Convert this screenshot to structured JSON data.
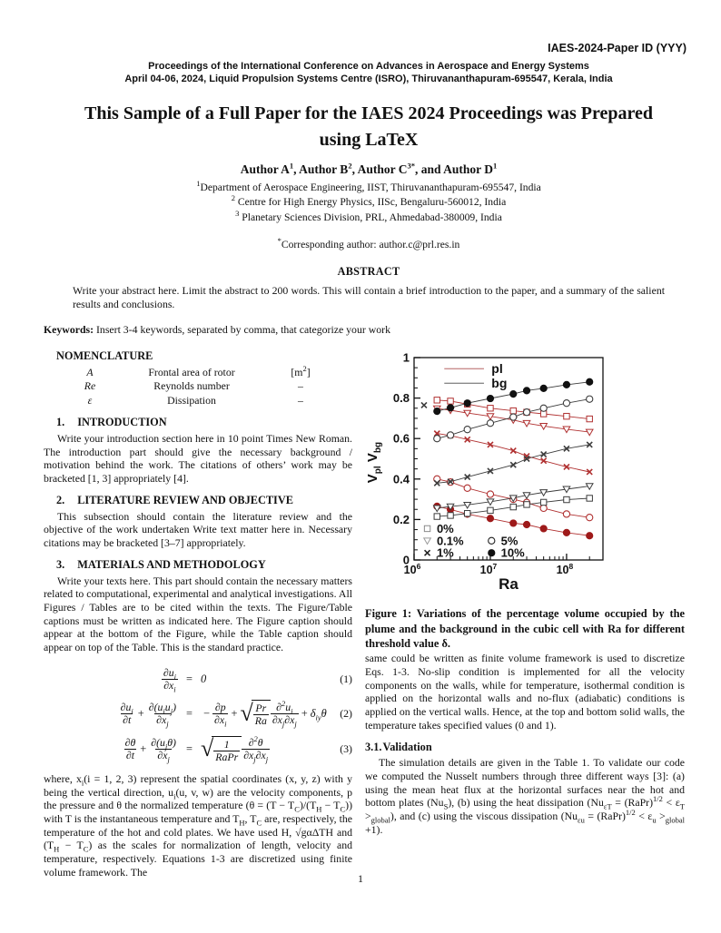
{
  "page": {
    "number": "1"
  },
  "header": {
    "paper_id": "IAES-2024-Paper ID (YYY)",
    "proc_line1": "Proceedings of the International Conference on Advances in Aerospace and Energy Systems",
    "proc_line2": "April 04-06, 2024, Liquid Propulsion Systems Centre (ISRO), Thiruvananthapuram-695547, Kerala, India"
  },
  "title": "This Sample of a Full Paper for the IAES 2024 Proceedings was Prepared using LaTeX",
  "authors": "Author A^{1}, Author B^{2}, Author C^{3*}, and Author D^{1}",
  "affiliations": [
    "^{1}Department of Aerospace Engineering, IIST, Thiruvananthapuram-695547, India",
    "^{2} Centre for High Energy Physics, IISc, Bengaluru-560012, India",
    "^{3} Planetary Sciences Division, PRL, Ahmedabad-380009, India"
  ],
  "corresponding": "^{*}Corresponding author: author.c@prl.res.in",
  "abstract": {
    "heading": "ABSTRACT",
    "text": "Write your abstract here. Limit the abstract to 200 words. This will contain a brief introduction to the paper, and a summary of the salient results and conclusions."
  },
  "keywords": {
    "label": "Keywords:",
    "text": " Insert 3-4 keywords, separated by comma, that categorize your work"
  },
  "nomenclature": {
    "heading": "NOMENCLATURE",
    "rows": [
      {
        "symbol": "A",
        "desc": "Frontal area of rotor",
        "unit": "[m^{2}]"
      },
      {
        "symbol": "Re",
        "desc": "Reynolds number",
        "unit": "–"
      },
      {
        "symbol": "ε",
        "desc": "Dissipation",
        "unit": "–"
      }
    ]
  },
  "sections": [
    {
      "num": "1.",
      "title": "INTRODUCTION",
      "body": "Write your introduction section here in 10 point Times New Roman. The introduction part should give the necessary background / motivation behind the work. The citations of others’ work may be bracketed [1, 3] appropriately [4]."
    },
    {
      "num": "2.",
      "title": "LITERATURE REVIEW AND OBJECTIVE",
      "body": "This subsection should contain the literature review and the objective of the work undertaken Write text matter here in. Necessary citations may be bracketed [3–7] appropriately."
    },
    {
      "num": "3.",
      "title": "MATERIALS AND METHODOLOGY",
      "body": "Write your texts here. This part should contain the necessary matters related to computational, experimental and analytical investigations. All Figures / Tables are to be cited within the texts. The Figure/Table captions must be written as indicated here. The Figure caption should appear at the bottom of the Figure, while the Table caption should appear on top of the Table. This is the standard practice."
    }
  ],
  "equations": [
    {
      "lhs": [
        {
          "frac": [
            "∂u_{i}",
            "∂x_{i}"
          ]
        }
      ],
      "rhs": [
        {
          "txt": "0"
        }
      ],
      "num": "(1)"
    },
    {
      "lhs": [
        {
          "frac": [
            "∂u_{i}",
            "∂t"
          ]
        },
        {
          "op": "+"
        },
        {
          "frac": [
            "∂(u_{i}u_{j})",
            "∂x_{j}"
          ]
        }
      ],
      "rhs": [
        {
          "op": "−"
        },
        {
          "frac": [
            "∂p",
            "∂x_{i}"
          ]
        },
        {
          "op": "+"
        },
        {
          "sqrt": {
            "frac": [
              "Pr",
              "Ra"
            ]
          }
        },
        {
          "frac": [
            "∂^{2}u_{i}",
            "∂x_{j}∂x_{j}"
          ]
        },
        {
          "op": "+"
        },
        {
          "txt": "δ_{iy}θ"
        }
      ],
      "num": "(2)"
    },
    {
      "lhs": [
        {
          "frac": [
            "∂θ",
            "∂t"
          ]
        },
        {
          "op": "+"
        },
        {
          "frac": [
            "∂(u_{j}θ)",
            "∂x_{j}"
          ]
        }
      ],
      "rhs": [
        {
          "sqrt": {
            "frac": [
              "1",
              "RaPr"
            ]
          }
        },
        {
          "frac": [
            "∂^{2}θ",
            "∂x_{j}∂x_{j}"
          ]
        }
      ],
      "num": "(3)"
    }
  ],
  "where_paragraph": "where, x_{i}(i = 1, 2, 3) represent the spatial coordinates (x, y, z) with y being the vertical direction, u_{i}(u, v, w) are the velocity components, p the pressure and θ the normalized temperature (θ = (T − T_{C})/(T_{H} − T_{C})) with T is the instantaneous temperature and T_{H}, T_{C} are, respectively, the temperature of the hot and cold plates. We have used H, √gαΔTH and (T_{H} − T_{C}) as the scales for normalization of length, velocity and temperature, respectively. Equations 1-3 are discretized using finite volume framework. The",
  "right_column": {
    "figure": {
      "label": "Figure 1",
      "caption": "Figure 1: Variations of the percentage volume occupied by the plume and the background in the cubic cell with Ra for different threshold value δ."
    },
    "para1": "same could be written as finite volume framework is used to discretize Eqs. 1-3. No-slip condition is implemented for all the velocity components on the walls, while for temperature, isothermal condition is applied on the horizontal walls and no-flux (adiabatic) conditions is applied on the vertical walls. Hence, at the top and bottom solid walls, the temperature takes specified values (0 and 1).",
    "validation": {
      "num": "3.1.",
      "title": "Validation",
      "body": "The simulation details are given in the Table 1. To validate our code we computed the Nusselt numbers through three different ways [3]: (a) using the mean heat flux at the horizontal surfaces near the hot and bottom plates (Nu_{S}), (b) using the heat dissipation (Nu_{εT} = (RaPr)^{1/2} < ε_{T} >_{global}), and (c) using the viscous dissipation (Nu_{εu} = (RaPr)^{1/2} < ε_{u} >_{global} +1)."
    }
  },
  "chart_data": {
    "type": "line",
    "title": "",
    "xlabel": "Ra",
    "ylabel": "V_pl V_bg",
    "x_scale": "log",
    "xlim": [
      1000000,
      300000000
    ],
    "ylim": [
      0,
      1
    ],
    "x_tick_labels": [
      "10^6",
      "10^7",
      "10^8"
    ],
    "x_tick_values": [
      1000000,
      10000000,
      100000000
    ],
    "y_tick_values": [
      0,
      0.2,
      0.4,
      0.6,
      0.8,
      1
    ],
    "y_tick_labels": [
      "0",
      "0.2",
      "0.4",
      "0.6",
      "0.8",
      "1"
    ],
    "grid": false,
    "colors": {
      "pl": "#b03030",
      "pl_fill": "#9e1a1a",
      "bg": "#3c3c3c",
      "bg_fill": "#111111",
      "legend_gray": "#888888"
    },
    "line_legend": [
      {
        "label": "pl",
        "color": "#c98c8c"
      },
      {
        "label": "bg",
        "color": "#8a8a8a"
      }
    ],
    "marker_legend": [
      {
        "marker": "square-open",
        "label": "0%"
      },
      {
        "marker": "triangle-down-open",
        "label": "0.1%"
      },
      {
        "marker": "x",
        "label": "1%"
      },
      {
        "marker": "circle-open",
        "label": "5%"
      },
      {
        "marker": "circle-filled",
        "label": "10%"
      }
    ],
    "x": [
      2000000,
      3000000,
      5000000,
      10000000,
      20000000,
      30000000,
      50000000,
      100000000,
      200000000
    ],
    "series": [
      {
        "name": "pl 0%",
        "group": "pl",
        "marker": "square-open",
        "values": [
          0.79,
          0.785,
          0.77,
          0.75,
          0.737,
          0.73,
          0.722,
          0.71,
          0.697
        ]
      },
      {
        "name": "pl 0.1%",
        "group": "pl",
        "marker": "triangle-down-open",
        "values": [
          0.748,
          0.74,
          0.726,
          0.71,
          0.692,
          0.676,
          0.662,
          0.646,
          0.632
        ]
      },
      {
        "name": "pl 1%",
        "group": "pl",
        "marker": "x",
        "values": [
          0.625,
          0.615,
          0.595,
          0.57,
          0.54,
          0.513,
          0.49,
          0.46,
          0.435
        ]
      },
      {
        "name": "pl 5%",
        "group": "pl",
        "marker": "circle-open",
        "values": [
          0.4,
          0.385,
          0.355,
          0.325,
          0.3,
          0.284,
          0.256,
          0.227,
          0.21
        ]
      },
      {
        "name": "pl 10%",
        "group": "pl",
        "marker": "circle-filled",
        "values": [
          0.265,
          0.25,
          0.227,
          0.205,
          0.182,
          0.175,
          0.155,
          0.135,
          0.12
        ]
      },
      {
        "name": "bg 0%",
        "group": "bg",
        "marker": "square-open",
        "values": [
          0.215,
          0.22,
          0.23,
          0.245,
          0.262,
          0.274,
          0.285,
          0.298,
          0.305
        ]
      },
      {
        "name": "bg 0.1%",
        "group": "bg",
        "marker": "triangle-down-open",
        "values": [
          0.256,
          0.264,
          0.272,
          0.288,
          0.306,
          0.32,
          0.334,
          0.35,
          0.365
        ]
      },
      {
        "name": "bg 1%",
        "group": "bg",
        "marker": "x",
        "values": [
          0.38,
          0.387,
          0.41,
          0.44,
          0.47,
          0.5,
          0.522,
          0.55,
          0.57
        ]
      },
      {
        "name": "bg 5%",
        "group": "bg",
        "marker": "circle-open",
        "values": [
          0.6,
          0.617,
          0.645,
          0.676,
          0.706,
          0.73,
          0.75,
          0.775,
          0.795
        ]
      },
      {
        "name": "bg 10%",
        "group": "bg",
        "marker": "circle-filled",
        "values": [
          0.735,
          0.752,
          0.775,
          0.798,
          0.82,
          0.837,
          0.848,
          0.866,
          0.88
        ]
      }
    ],
    "stray_marker": {
      "x": 1350000,
      "y": 0.765,
      "marker": "x",
      "group": "bg"
    }
  }
}
